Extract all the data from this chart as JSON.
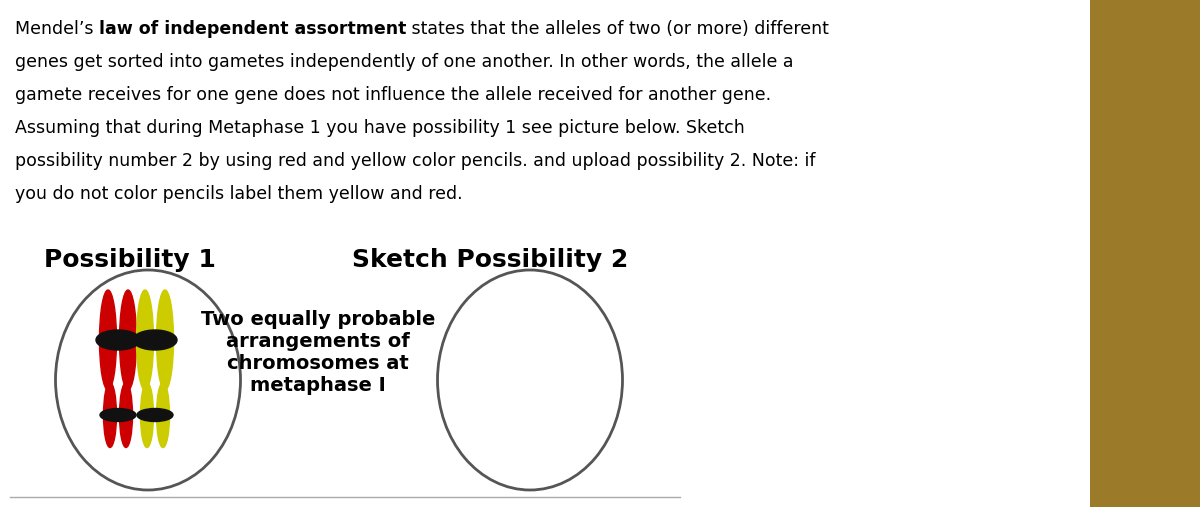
{
  "bg_color": "#ffffff",
  "title1": "Possibility 1",
  "title2": "Sketch Possibility 2",
  "middle_text": "Two equally probable\narrangements of\nchromosomes at\nmetaphase I",
  "red_color": "#cc0000",
  "yellow_color": "#cccc00",
  "centromere_color": "#111111",
  "para_lines": [
    [
      [
        "Mendel’s ",
        false
      ],
      [
        "law of independent assortment",
        true
      ],
      [
        " states that the alleles of two (or more) different",
        false
      ]
    ],
    [
      [
        "genes get sorted into gametes independently of one another. In other words, the allele a",
        false
      ]
    ],
    [
      [
        "gamete receives for one gene does not influence the allele received for another gene.",
        false
      ]
    ],
    [
      [
        "Assuming that during Metaphase 1 you have possibility 1 see picture below. Sketch",
        false
      ]
    ],
    [
      [
        "possibility number 2 by using red and yellow color pencils. and upload possibility 2. Note: if",
        false
      ]
    ],
    [
      [
        "you do not color pencils label them yellow and red.",
        false
      ]
    ]
  ],
  "fontsize_para": 12.5,
  "fontsize_title": 18,
  "fontsize_middle": 14
}
